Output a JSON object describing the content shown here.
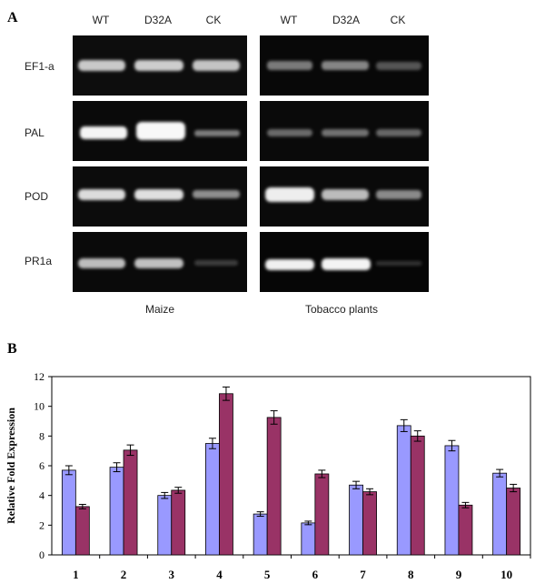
{
  "panel_a": {
    "letter": "A",
    "lanes_left": [
      "WT",
      "D32A",
      "CK"
    ],
    "lanes_right": [
      "WT",
      "D32A",
      "CK"
    ],
    "rows": [
      "EF1-a",
      "PAL",
      "POD",
      "PR1a"
    ],
    "group_left": "Maize",
    "group_right": "Tobacco plants"
  },
  "panel_b": {
    "letter": "B"
  },
  "chart_data": {
    "type": "bar",
    "title": "",
    "xlabel": "",
    "ylabel": "Relative Fold Expression",
    "ylim": [
      0,
      12
    ],
    "yticks": [
      0,
      2,
      4,
      6,
      8,
      10,
      12
    ],
    "categories": [
      "1",
      "2",
      "3",
      "4",
      "5",
      "6",
      "7",
      "8",
      "9",
      "10"
    ],
    "grid": false,
    "legend": "none",
    "series": [
      {
        "color": "#9999ff",
        "values": [
          5.7,
          5.9,
          4.0,
          7.5,
          2.75,
          2.15,
          4.7,
          8.7,
          7.35,
          5.5
        ],
        "errors": [
          0.3,
          0.3,
          0.2,
          0.35,
          0.15,
          0.12,
          0.25,
          0.4,
          0.35,
          0.25
        ]
      },
      {
        "color": "#993366",
        "values": [
          3.25,
          7.05,
          4.35,
          10.85,
          9.25,
          5.45,
          4.25,
          8.0,
          3.35,
          4.5
        ],
        "errors": [
          0.15,
          0.35,
          0.2,
          0.45,
          0.45,
          0.25,
          0.2,
          0.35,
          0.18,
          0.25
        ]
      }
    ]
  }
}
